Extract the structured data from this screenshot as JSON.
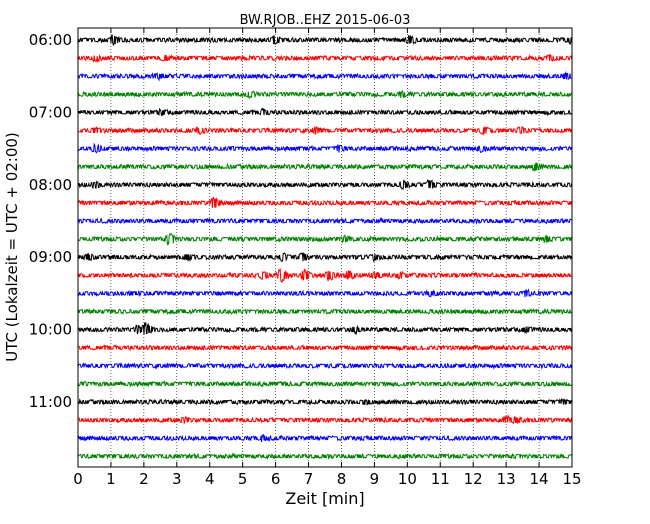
{
  "chart_data": {
    "type": "line",
    "title": "BW.RJOB..EHZ 2015-06-03",
    "xlabel": "Zeit  [min]",
    "ylabel": "UTC (Lokalzeit = UTC + 02:00)",
    "xlim": [
      0,
      15
    ],
    "x_ticks": [
      "0",
      "1",
      "2",
      "3",
      "4",
      "5",
      "6",
      "7",
      "8",
      "9",
      "10",
      "11",
      "12",
      "13",
      "14",
      "15"
    ],
    "y_tick_labels": [
      "06:00",
      "07:00",
      "08:00",
      "09:00",
      "10:00",
      "11:00"
    ],
    "grid": "vertical dotted lines at each minute",
    "legend": "none",
    "trace_colors": [
      "#000000",
      "#ff0000",
      "#0000ff",
      "#008000"
    ],
    "traces": [
      {
        "start": "06:00",
        "events": [
          {
            "t": 1.05,
            "amp": 3.5
          },
          {
            "t": 5.95,
            "amp": 3.0
          },
          {
            "t": 10.05,
            "amp": 3.5
          },
          {
            "t": 14.95,
            "amp": 2.5
          }
        ]
      },
      {
        "start": "06:15",
        "events": [
          {
            "t": 0.5,
            "amp": 1.8
          },
          {
            "t": 2.6,
            "amp": 1.6
          },
          {
            "t": 14.3,
            "amp": 1.8
          }
        ]
      },
      {
        "start": "06:30",
        "events": [
          {
            "t": 2.4,
            "amp": 1.8
          },
          {
            "t": 14.8,
            "amp": 2.2
          }
        ]
      },
      {
        "start": "06:45",
        "events": [
          {
            "t": 5.2,
            "amp": 2.0
          },
          {
            "t": 9.8,
            "amp": 1.5
          }
        ]
      },
      {
        "start": "07:00",
        "events": [
          {
            "t": 2.5,
            "amp": 1.5
          },
          {
            "t": 5.6,
            "amp": 1.8
          }
        ]
      },
      {
        "start": "07:15",
        "events": [
          {
            "t": 0.5,
            "amp": 2.0
          },
          {
            "t": 3.65,
            "amp": 2.2
          },
          {
            "t": 7.2,
            "amp": 1.8
          },
          {
            "t": 12.3,
            "amp": 2.2
          },
          {
            "t": 13.4,
            "amp": 2.5
          }
        ]
      },
      {
        "start": "07:30",
        "events": [
          {
            "t": 0.5,
            "amp": 2.8
          },
          {
            "t": 7.9,
            "amp": 2.0
          },
          {
            "t": 12.2,
            "amp": 1.8
          }
        ]
      },
      {
        "start": "07:45",
        "events": [
          {
            "t": 13.85,
            "amp": 2.5
          }
        ]
      },
      {
        "start": "08:00",
        "events": [
          {
            "t": 0.5,
            "amp": 2.0
          },
          {
            "t": 9.85,
            "amp": 3.2
          },
          {
            "t": 10.65,
            "amp": 3.5
          }
        ]
      },
      {
        "start": "08:15",
        "events": [
          {
            "t": 4.1,
            "amp": 4.5
          }
        ]
      },
      {
        "start": "08:30",
        "events": []
      },
      {
        "start": "08:45",
        "events": [
          {
            "t": 2.75,
            "amp": 4.2
          },
          {
            "t": 8.1,
            "amp": 1.5
          },
          {
            "t": 14.2,
            "amp": 1.8
          }
        ]
      },
      {
        "start": "09:00",
        "events": [
          {
            "t": 0.3,
            "amp": 2.5
          },
          {
            "t": 3.3,
            "amp": 2.0
          },
          {
            "t": 6.2,
            "amp": 2.5
          },
          {
            "t": 6.8,
            "amp": 2.8
          },
          {
            "t": 8.95,
            "amp": 2.2
          }
        ]
      },
      {
        "start": "09:15",
        "events": [
          {
            "t": 5.6,
            "amp": 3.0
          },
          {
            "t": 6.15,
            "amp": 5.5
          },
          {
            "t": 6.85,
            "amp": 4.0
          },
          {
            "t": 7.6,
            "amp": 4.8
          },
          {
            "t": 8.2,
            "amp": 3.0
          },
          {
            "t": 9.0,
            "amp": 2.2
          },
          {
            "t": 9.75,
            "amp": 2.0
          }
        ]
      },
      {
        "start": "09:30",
        "events": [
          {
            "t": 10.7,
            "amp": 1.5
          },
          {
            "t": 13.6,
            "amp": 2.0
          }
        ]
      },
      {
        "start": "09:45",
        "events": []
      },
      {
        "start": "10:00",
        "events": [
          {
            "t": 1.8,
            "amp": 3.0
          },
          {
            "t": 2.05,
            "amp": 5.5
          },
          {
            "t": 8.4,
            "amp": 2.0
          },
          {
            "t": 13.6,
            "amp": 1.8
          }
        ]
      },
      {
        "start": "10:15",
        "events": []
      },
      {
        "start": "10:30",
        "events": []
      },
      {
        "start": "10:45",
        "events": []
      },
      {
        "start": "11:00",
        "events": [
          {
            "t": 8.7,
            "amp": 1.3
          },
          {
            "t": 14.7,
            "amp": 1.5
          }
        ]
      },
      {
        "start": "11:15",
        "events": [
          {
            "t": 3.2,
            "amp": 1.8
          },
          {
            "t": 13.0,
            "amp": 2.5
          },
          {
            "t": 13.3,
            "amp": 1.8
          }
        ]
      },
      {
        "start": "11:30",
        "events": [
          {
            "t": 5.6,
            "amp": 1.8
          }
        ]
      },
      {
        "start": "11:45",
        "events": []
      }
    ]
  }
}
